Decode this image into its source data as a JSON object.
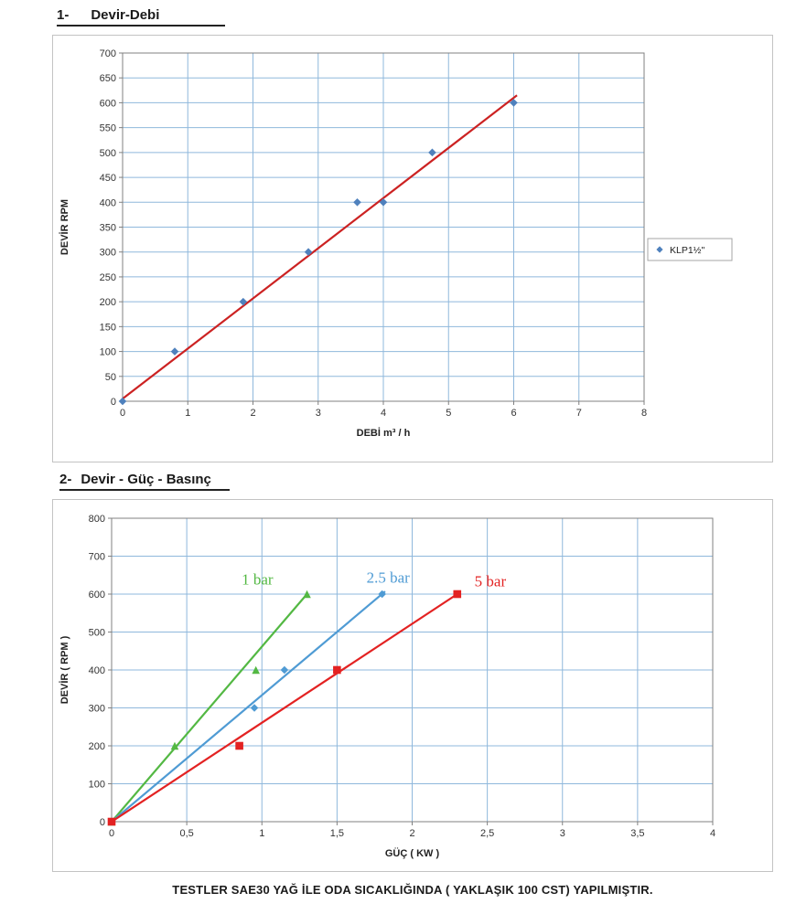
{
  "page": {
    "heading1_num": "1-",
    "heading1_text": "Devir-Debi",
    "heading2_num": "2-",
    "heading2_text": "Devir - Güç - Basınç",
    "caption": "TESTLER SAE30 YAĞ İLE ODA SICAKLIĞINDA ( YAKLAŞIK 100 CST) YAPILMIŞTIR."
  },
  "colors": {
    "grid": "#8fb8dc",
    "plot_border": "#808080",
    "tick_text": "#333333",
    "axis_title_text": "#222222"
  },
  "chart_data": [
    {
      "type": "scatter",
      "title": "",
      "xlabel": "DEBİ m³ / h",
      "ylabel": "DEVİR RPM",
      "xlim": [
        0,
        8
      ],
      "ylim": [
        0,
        700
      ],
      "xticks": [
        0,
        1,
        2,
        3,
        4,
        5,
        6,
        7,
        8
      ],
      "yticks": [
        0,
        50,
        100,
        150,
        200,
        250,
        300,
        350,
        400,
        450,
        500,
        550,
        600,
        650,
        700
      ],
      "grid": true,
      "legend": true,
      "legend_position": "right-outside",
      "series": [
        {
          "name": "KLP1½\"",
          "marker": "diamond",
          "color": "#4f81bd",
          "trend_color": "#cc2222",
          "points": [
            [
              0,
              0
            ],
            [
              0.8,
              100
            ],
            [
              1.85,
              200
            ],
            [
              2.85,
              300
            ],
            [
              3.6,
              400
            ],
            [
              4.0,
              400
            ],
            [
              4.75,
              500
            ],
            [
              6.0,
              600
            ]
          ],
          "trend": [
            [
              0,
              5
            ],
            [
              6.05,
              615
            ]
          ]
        }
      ]
    },
    {
      "type": "scatter",
      "title": "",
      "xlabel": "GÜÇ ( KW )",
      "ylabel": "DEVİR ( RPM )",
      "xlim": [
        0,
        4
      ],
      "ylim": [
        0,
        800
      ],
      "xticks": [
        0,
        0.5,
        1,
        1.5,
        2,
        2.5,
        3,
        3.5,
        4
      ],
      "xtick_labels": [
        "0",
        "0,5",
        "1",
        "1,5",
        "2",
        "2,5",
        "3",
        "3,5",
        "4"
      ],
      "yticks": [
        0,
        100,
        200,
        300,
        400,
        500,
        600,
        700,
        800
      ],
      "grid": true,
      "legend": false,
      "series": [
        {
          "name": "1 bar",
          "marker": "triangle",
          "color": "#53b843",
          "points": [
            [
              0,
              0
            ],
            [
              0.42,
              200
            ],
            [
              0.96,
              400
            ],
            [
              1.3,
              600
            ]
          ],
          "trend": [
            [
              0,
              0
            ],
            [
              1.3,
              600
            ]
          ]
        },
        {
          "name": "2.5 bar",
          "marker": "diamond",
          "color": "#4f9bd4",
          "points": [
            [
              0,
              0
            ],
            [
              0.95,
              300
            ],
            [
              1.15,
              400
            ],
            [
              1.8,
              600
            ]
          ],
          "trend": [
            [
              0,
              0
            ],
            [
              1.82,
              607
            ]
          ]
        },
        {
          "name": "5 bar",
          "marker": "square",
          "color": "#e32222",
          "points": [
            [
              0,
              0
            ],
            [
              0.85,
              200
            ],
            [
              1.5,
              400
            ],
            [
              2.3,
              600
            ]
          ],
          "trend": [
            [
              0,
              0
            ],
            [
              2.3,
              600
            ]
          ]
        }
      ],
      "annotations": [
        {
          "text": "1 bar",
          "x": 0.97,
          "y": 625,
          "color": "#53b843"
        },
        {
          "text": "2.5 bar",
          "x": 1.84,
          "y": 630,
          "color": "#4f9bd4"
        },
        {
          "text": "5 bar",
          "x": 2.52,
          "y": 620,
          "color": "#e32222"
        }
      ]
    }
  ]
}
